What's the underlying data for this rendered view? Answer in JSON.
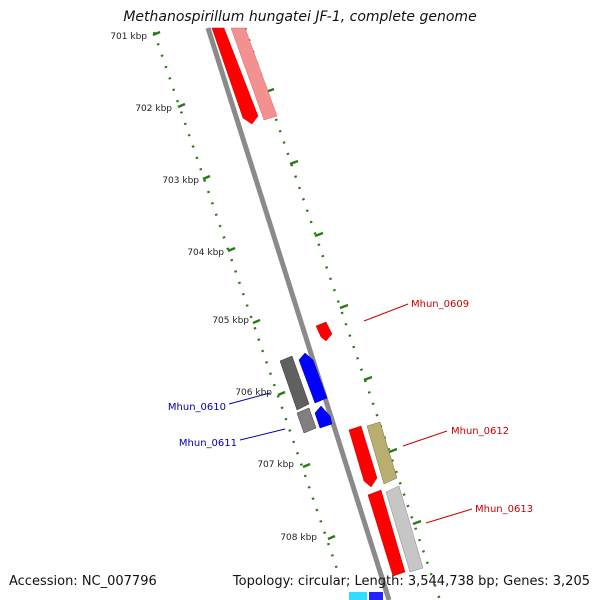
{
  "title": "Methanospirillum hungatei JF-1, complete genome",
  "footer": {
    "accession": "Accession: NC_007796",
    "summary": "Topology: circular; Length: 3,544,738 bp; Genes: 3,205"
  },
  "tick_labels": [
    "701 kbp",
    "702 kbp",
    "703 kbp",
    "704 kbp",
    "705 kbp",
    "706 kbp",
    "707 kbp",
    "708 kbp"
  ],
  "gene_labels": {
    "g0609": "Mhun_0609",
    "g0610": "Mhun_0610",
    "g0611": "Mhun_0611",
    "g0612": "Mhun_0612",
    "g0613": "Mhun_0613"
  },
  "colors": {
    "forward_cds": "#ff0000",
    "reverse_cds": "#0000ff",
    "label_forward": "#cc0000",
    "label_reverse": "#0000aa",
    "tick": "#2a7a1a",
    "backbone": "#8a8a8a"
  }
}
